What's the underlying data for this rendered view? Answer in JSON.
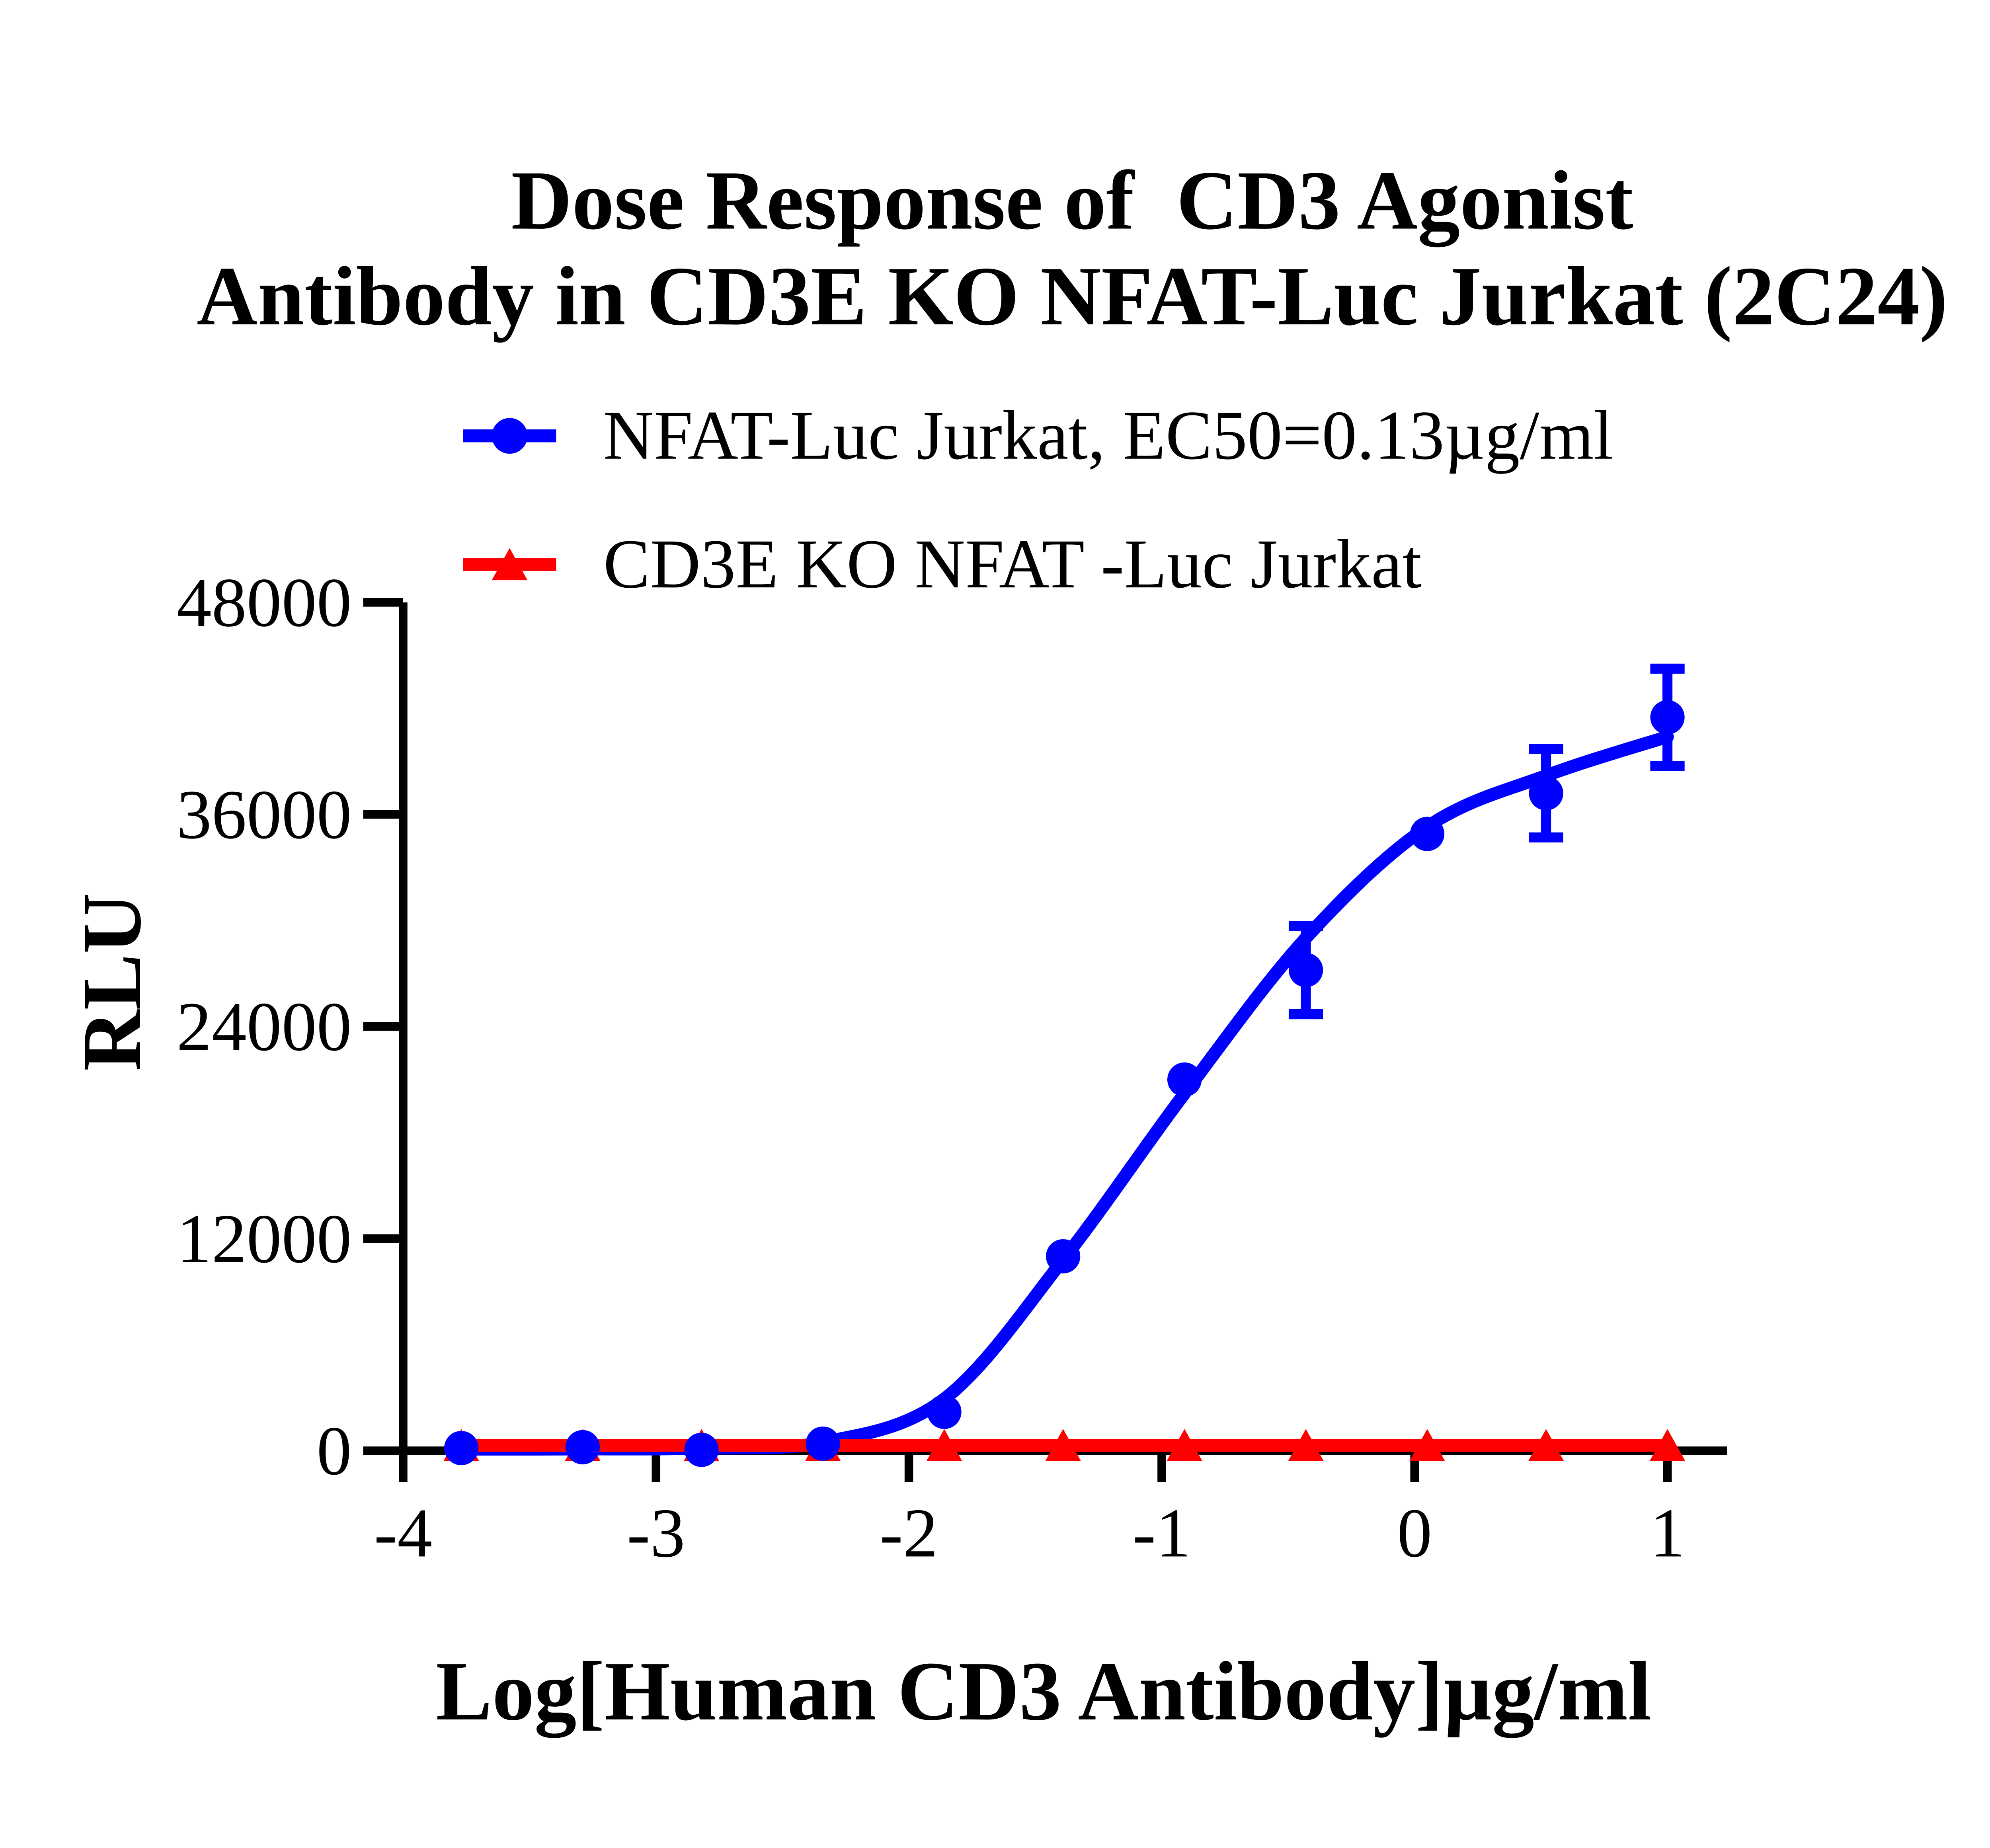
{
  "title": {
    "line1": "Dose Response of  CD3 Agonist",
    "line2": "Antibody in CD3E KO NFAT-Luc Jurkat (2C24)"
  },
  "legend": [
    {
      "label": "NFAT-Luc Jurkat, EC50=0.13µg/ml",
      "color": "#0000ff",
      "marker": "circle"
    },
    {
      "label": "CD3E KO NFAT -Luc Jurkat",
      "color": "#ff0000",
      "marker": "triangle-up"
    }
  ],
  "chart_data": {
    "type": "scatter",
    "title": "Dose Response of CD3 Agonist Antibody in CD3E KO NFAT-Luc Jurkat (2C24)",
    "xlabel": "Log[Human CD3 Antibody]µg/ml",
    "ylabel": "RLU",
    "xlim": [
      -4,
      1.25
    ],
    "ylim": [
      0,
      48000
    ],
    "x_ticks": [
      -4,
      -3,
      -2,
      -1,
      0,
      1
    ],
    "y_ticks": [
      0,
      12000,
      24000,
      36000,
      48000
    ],
    "grid": false,
    "legend_position": "top",
    "axis_color": "#000000",
    "series": [
      {
        "name": "NFAT-Luc Jurkat, EC50=0.13µg/ml",
        "color": "#0000ff",
        "marker": "circle",
        "x": [
          -3.77,
          -3.29,
          -2.82,
          -2.34,
          -1.86,
          -1.39,
          -0.91,
          -0.43,
          0.05,
          0.52,
          1.0
        ],
        "y": [
          150,
          200,
          50,
          400,
          2200,
          11000,
          21000,
          27200,
          34900,
          37200,
          41500
        ],
        "yerr": [
          0,
          0,
          0,
          0,
          0,
          0,
          0,
          2500,
          0,
          2500,
          2750
        ],
        "ec50_ug_ml": 0.13,
        "fit_curve_anchors": {
          "x": [
            -3.77,
            -3.29,
            -2.82,
            -2.34,
            -1.86,
            -1.39,
            -0.91,
            -0.43,
            0.05,
            0.52,
            1.0
          ],
          "y": [
            90,
            95,
            140,
            480,
            2930,
            10800,
            20200,
            29000,
            35300,
            38200,
            40400
          ]
        }
      },
      {
        "name": "CD3E KO NFAT -Luc Jurkat",
        "color": "#ff0000",
        "marker": "triangle-up",
        "x": [
          -3.77,
          -3.29,
          -2.82,
          -2.34,
          -1.86,
          -1.39,
          -0.91,
          -0.43,
          0.05,
          0.52,
          1.0
        ],
        "y": [
          300,
          300,
          300,
          300,
          300,
          300,
          300,
          300,
          300,
          300,
          300
        ],
        "yerr": [
          0,
          0,
          0,
          0,
          0,
          0,
          0,
          0,
          0,
          0,
          0
        ]
      }
    ]
  }
}
